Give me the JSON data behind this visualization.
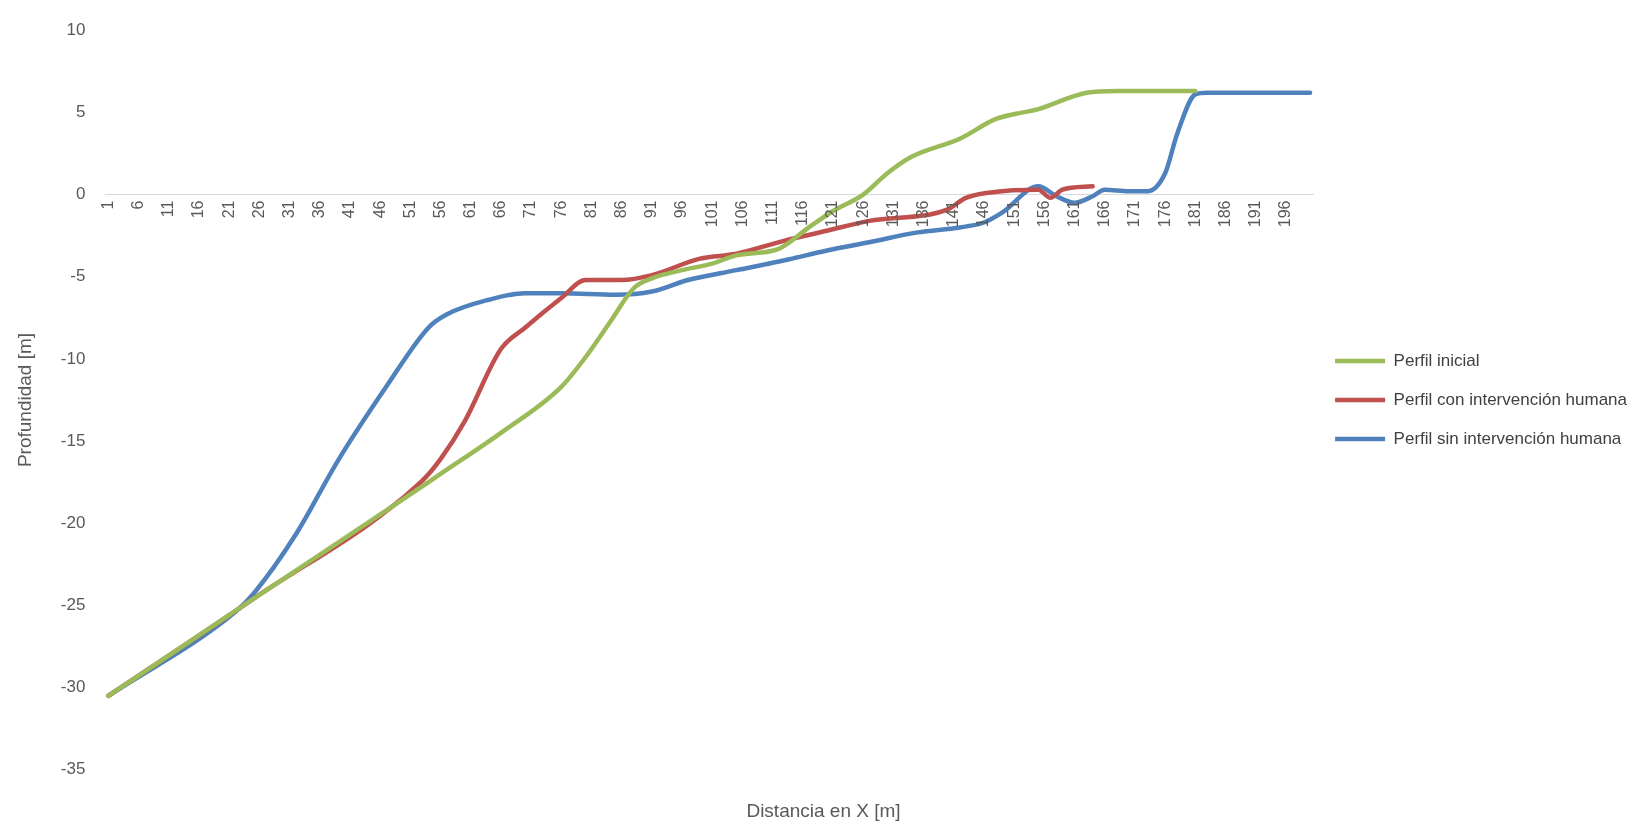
{
  "chart_data": {
    "type": "line",
    "xlabel": "Distancia en X [m]",
    "ylabel": "Profundidad [m]",
    "xlim": [
      0.5,
      200.5
    ],
    "xticks": [
      1,
      6,
      11,
      16,
      21,
      26,
      31,
      36,
      41,
      46,
      51,
      56,
      61,
      66,
      71,
      76,
      81,
      86,
      91,
      96,
      101,
      106,
      111,
      116,
      121,
      126,
      131,
      136,
      141,
      146,
      151,
      156,
      161,
      166,
      171,
      176,
      181,
      186,
      191,
      196
    ],
    "ylim": [
      -35,
      10
    ],
    "yticks": [
      -35,
      -30,
      -25,
      -20,
      -15,
      -10,
      -5,
      0,
      5,
      10
    ],
    "grid": false,
    "legend": "right",
    "marker": "none",
    "line_style": "solid",
    "series": [
      {
        "name": "Perfil inicial",
        "color": "#9bbb59",
        "x": [
          1,
          25,
          52,
          56,
          66,
          76,
          80,
          84,
          88,
          91,
          96,
          101,
          105,
          112,
          117,
          121,
          126,
          130,
          134,
          142,
          148,
          155,
          163,
          168,
          181
        ],
        "values": [
          -30.5,
          -24.6,
          -18,
          -17,
          -14.5,
          -11.7,
          -9.9,
          -7.8,
          -5.7,
          -5.1,
          -4.6,
          -4.2,
          -3.7,
          -3.3,
          -2.0,
          -1.0,
          0,
          1.3,
          2.3,
          3.4,
          4.6,
          5.2,
          6.2,
          6.3,
          6.3
        ]
      },
      {
        "name": "Perfil con intervención humana",
        "color": "#c0504d",
        "x": [
          1,
          25,
          53,
          56,
          60,
          66,
          70,
          76,
          80,
          86,
          91,
          99,
          105,
          113,
          120,
          127,
          140,
          143,
          149,
          155,
          157,
          159,
          164
        ],
        "values": [
          -30.5,
          -24.6,
          -17.4,
          -16.1,
          -13.8,
          -9.4,
          -8.1,
          -6.3,
          -5.2,
          -5.2,
          -4.9,
          -3.9,
          -3.6,
          -2.8,
          -2.2,
          -1.6,
          -0.9,
          -0.2,
          0.2,
          0.3,
          -0.2,
          0.3,
          0.5
        ]
      },
      {
        "name": "Perfil sin intervención humana",
        "color": "#4f81bd",
        "x": [
          1,
          22,
          25,
          32,
          39,
          47,
          54,
          57,
          64,
          70,
          76,
          85,
          91,
          97,
          105,
          113,
          120,
          127,
          135,
          142,
          146,
          149,
          155,
          158,
          161,
          164,
          166,
          170,
          173,
          176,
          178,
          181,
          183,
          200
        ],
        "values": [
          -30.5,
          -25.4,
          -24.3,
          -20.7,
          -16.2,
          -11.7,
          -8.1,
          -7.3,
          -6.4,
          -6.0,
          -6.0,
          -6.1,
          -5.9,
          -5.2,
          -4.6,
          -4.0,
          -3.4,
          -2.9,
          -2.3,
          -2.0,
          -1.7,
          -1.1,
          0.5,
          -0.1,
          -0.5,
          -0.1,
          0.3,
          0.2,
          0.2,
          1.3,
          3.7,
          6.1,
          6.2,
          6.2
        ]
      }
    ]
  }
}
